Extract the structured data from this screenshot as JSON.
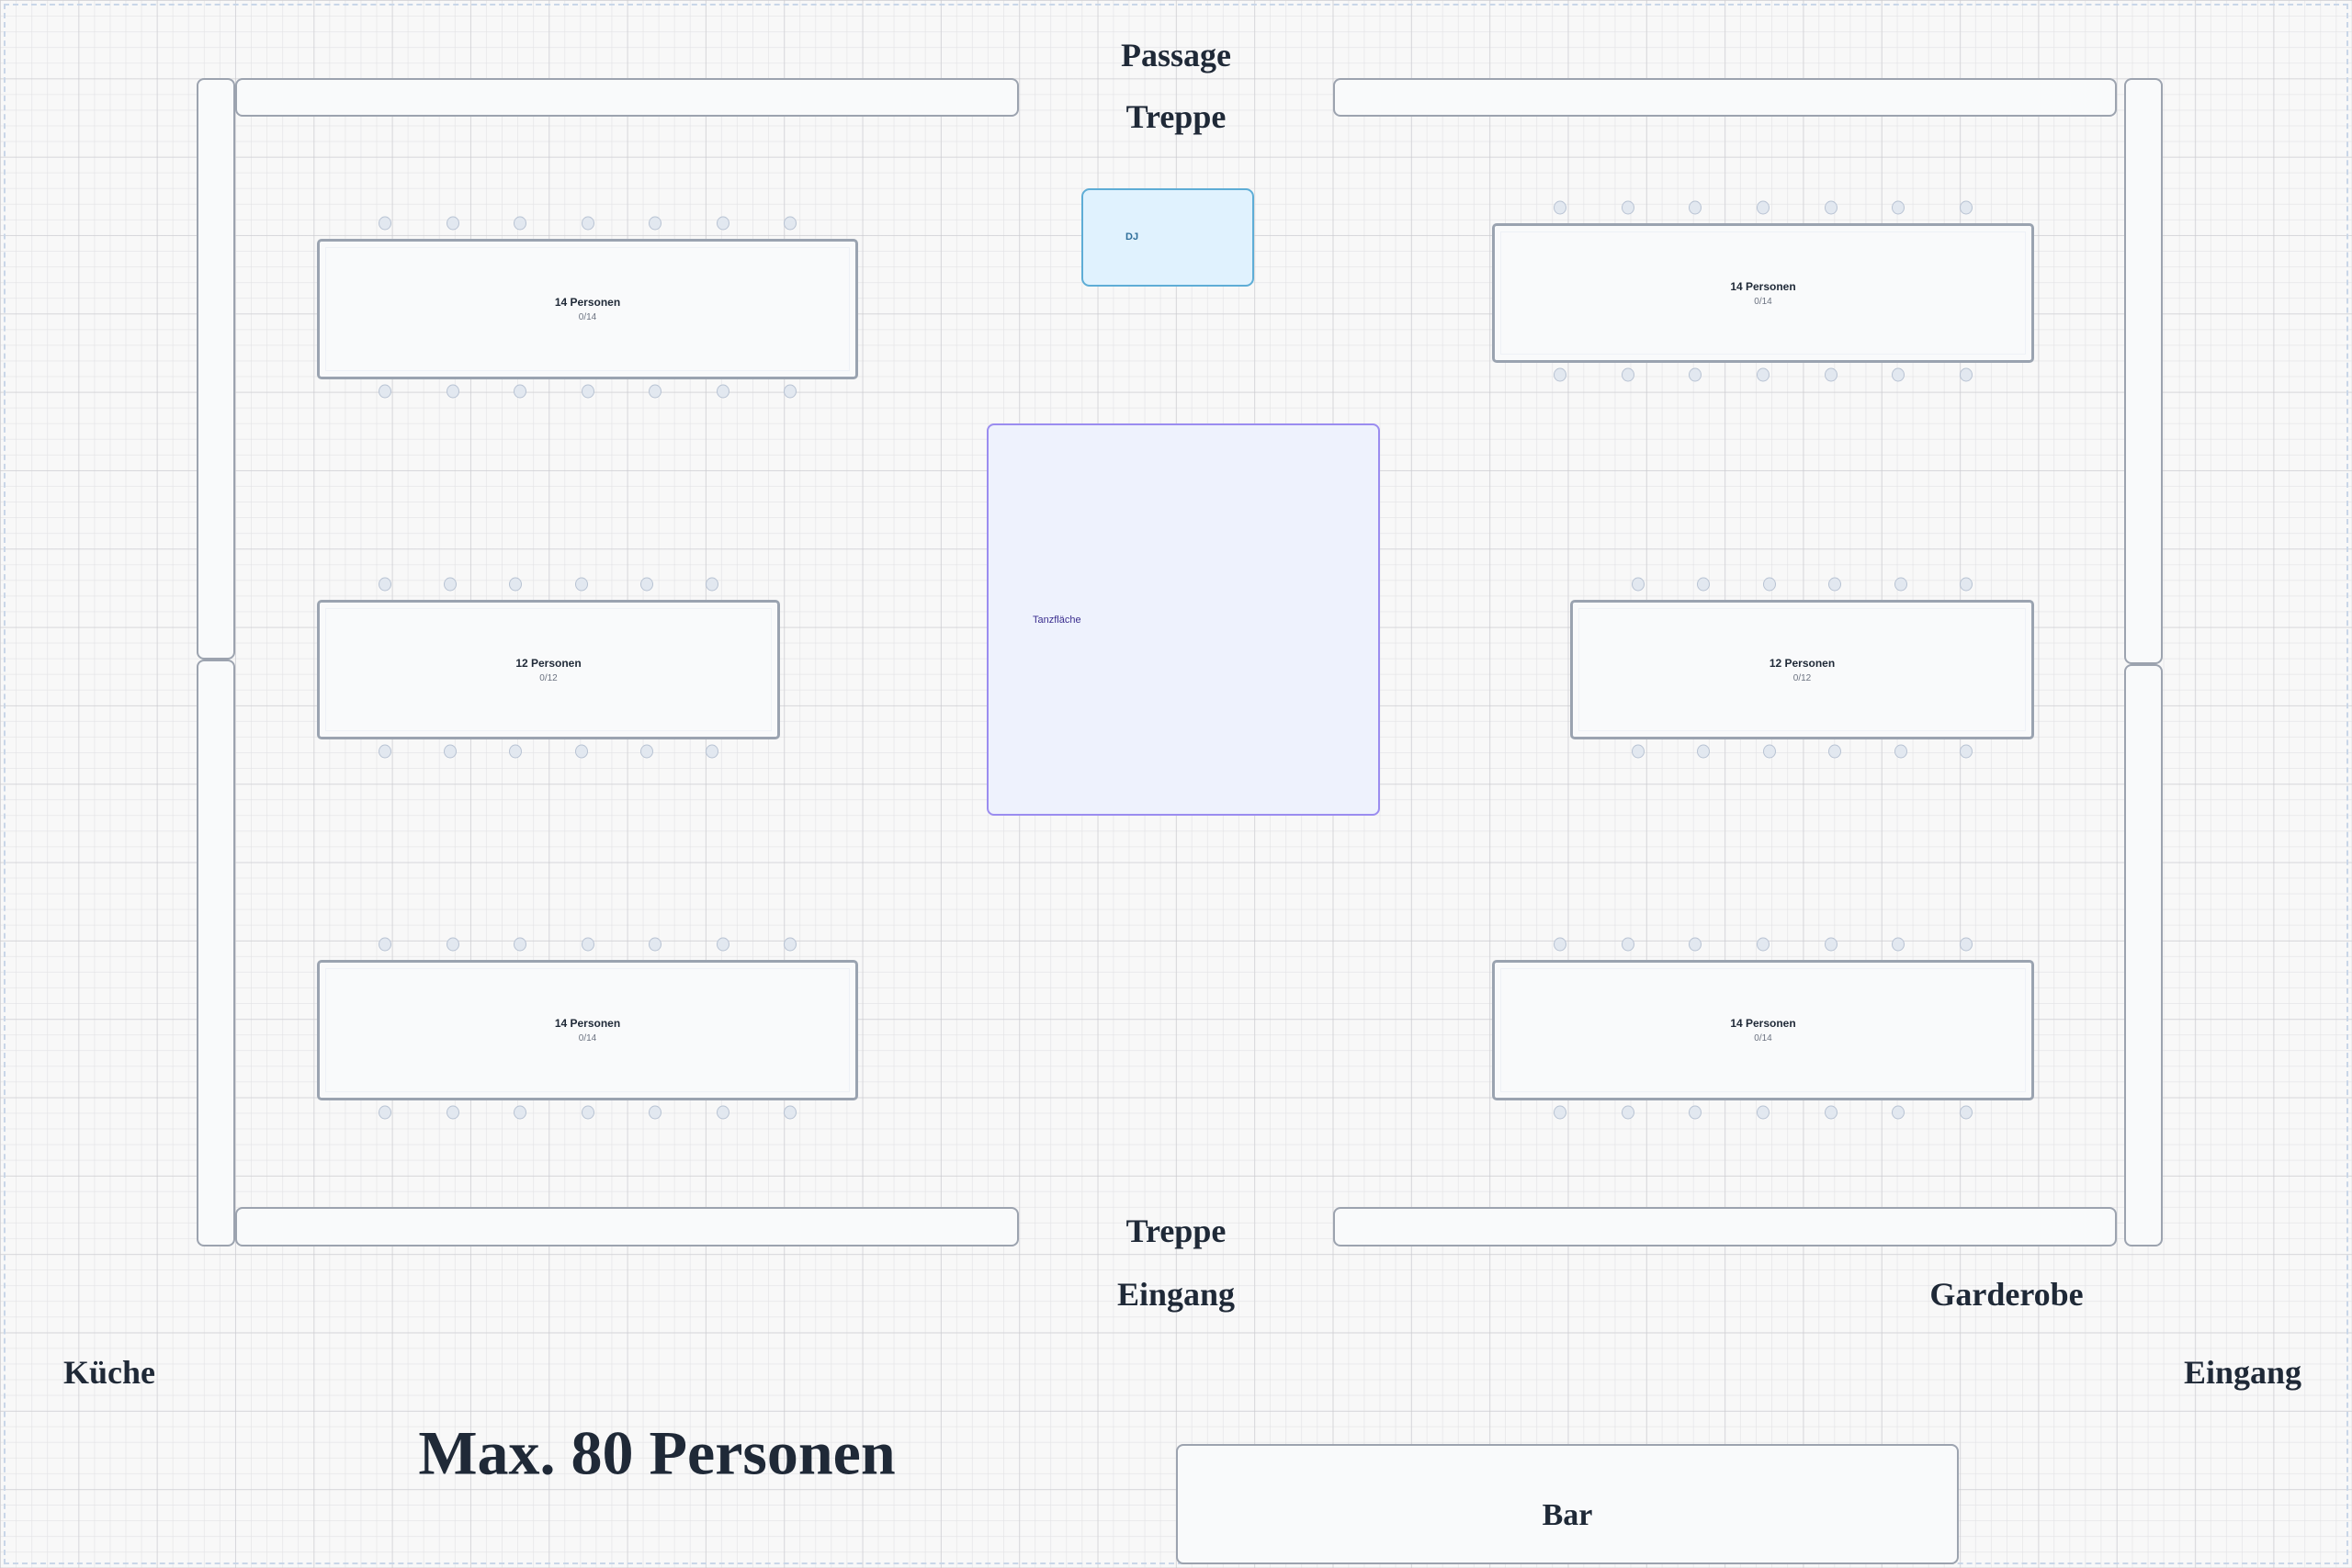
{
  "labels": {
    "passage": "Passage",
    "treppe_top": "Treppe",
    "treppe_bottom": "Treppe",
    "eingang_center": "Eingang",
    "garderobe": "Garderobe",
    "kueche": "Küche",
    "eingang_right": "Eingang",
    "capacity": "Max. 80 Personen"
  },
  "dj": {
    "label": "DJ",
    "color": "#e0f2fe"
  },
  "dancefloor": {
    "label": "Tanzfläche",
    "color": "#eef2fd"
  },
  "bar": {
    "label": "Bar"
  },
  "tables": [
    {
      "title": "14 Personen",
      "occupancy": "0/14",
      "seats": 14,
      "assigned": 0
    },
    {
      "title": "12 Personen",
      "occupancy": "0/12",
      "seats": 12,
      "assigned": 0
    },
    {
      "title": "14 Personen",
      "occupancy": "0/14",
      "seats": 14,
      "assigned": 0
    },
    {
      "title": "14 Personen",
      "occupancy": "0/14",
      "seats": 14,
      "assigned": 0
    },
    {
      "title": "12 Personen",
      "occupancy": "0/12",
      "seats": 12,
      "assigned": 0
    },
    {
      "title": "14 Personen",
      "occupancy": "0/14",
      "seats": 14,
      "assigned": 0
    }
  ]
}
